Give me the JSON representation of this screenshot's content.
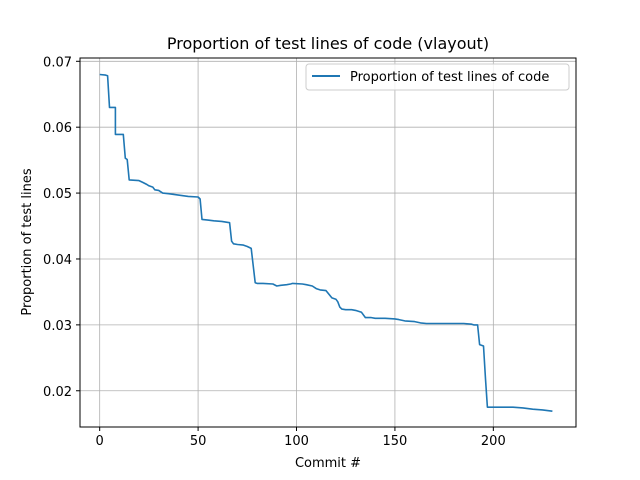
{
  "chart_data": {
    "type": "line",
    "title": "Proportion of test lines of code (vlayout)",
    "xlabel": "Commit #",
    "ylabel": "Proportion of test lines",
    "xlim": [
      -10,
      242
    ],
    "ylim": [
      0.0145,
      0.0705
    ],
    "xticks": [
      0,
      50,
      100,
      150,
      200
    ],
    "yticks": [
      0.02,
      0.03,
      0.04,
      0.05,
      0.06,
      0.07
    ],
    "xtick_labels": [
      "0",
      "50",
      "100",
      "150",
      "200"
    ],
    "ytick_labels": [
      "0.02",
      "0.03",
      "0.04",
      "0.05",
      "0.06",
      "0.07"
    ],
    "grid": true,
    "legend_position": "top-right",
    "color": "#1f77b4",
    "series": [
      {
        "name": "Proportion of test lines of code",
        "x": [
          0,
          3,
          4,
          5,
          8,
          8,
          12,
          13,
          14,
          15,
          20,
          22,
          24,
          25,
          27,
          28,
          30,
          32,
          35,
          40,
          45,
          50,
          51,
          52,
          55,
          58,
          62,
          66,
          67,
          68,
          70,
          73,
          75,
          77,
          79,
          80,
          83,
          88,
          90,
          92,
          95,
          97,
          98,
          103,
          105,
          108,
          110,
          112,
          115,
          118,
          120,
          121,
          122,
          123,
          125,
          128,
          130,
          133,
          135,
          138,
          140,
          145,
          150,
          152,
          155,
          160,
          163,
          166,
          170,
          175,
          180,
          185,
          189,
          190,
          192,
          193,
          195,
          196,
          197,
          198,
          200,
          205,
          210,
          215,
          220,
          225,
          230
        ],
        "y": [
          0.068,
          0.0679,
          0.0678,
          0.063,
          0.063,
          0.0589,
          0.0589,
          0.0553,
          0.0551,
          0.052,
          0.0519,
          0.0516,
          0.0513,
          0.0511,
          0.0509,
          0.0505,
          0.0504,
          0.05,
          0.0499,
          0.0497,
          0.0495,
          0.0494,
          0.0491,
          0.046,
          0.0459,
          0.0458,
          0.0457,
          0.0455,
          0.0427,
          0.0423,
          0.0422,
          0.0421,
          0.0419,
          0.0416,
          0.0364,
          0.0363,
          0.0363,
          0.0362,
          0.0359,
          0.036,
          0.0361,
          0.0362,
          0.0363,
          0.0362,
          0.0361,
          0.0359,
          0.0355,
          0.0353,
          0.0352,
          0.0341,
          0.0339,
          0.0335,
          0.0327,
          0.0324,
          0.0323,
          0.0323,
          0.0322,
          0.0319,
          0.0311,
          0.0311,
          0.031,
          0.031,
          0.0309,
          0.0308,
          0.0306,
          0.0305,
          0.0303,
          0.0302,
          0.0302,
          0.0302,
          0.0302,
          0.0302,
          0.0301,
          0.03,
          0.03,
          0.027,
          0.0268,
          0.0218,
          0.0175,
          0.0175,
          0.0175,
          0.0175,
          0.0175,
          0.0174,
          0.0172,
          0.0171,
          0.0169
        ]
      }
    ]
  }
}
